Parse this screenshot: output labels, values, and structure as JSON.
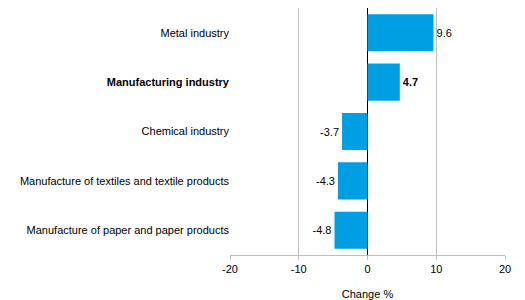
{
  "chart_data": {
    "type": "bar",
    "orientation": "horizontal",
    "categories": [
      "Metal industry",
      "Manufacturing industry",
      "Chemical industry",
      "Manufacture of textiles and textile products",
      "Manufacture of paper and paper products"
    ],
    "values": [
      9.6,
      4.7,
      -3.7,
      -4.3,
      -4.8
    ],
    "color": "#009fe3",
    "x_label": "Change %",
    "xlim": [
      -20,
      20
    ],
    "xticks": [
      -20,
      -10,
      0,
      10,
      20
    ],
    "grid": true,
    "data_labels": true
  }
}
